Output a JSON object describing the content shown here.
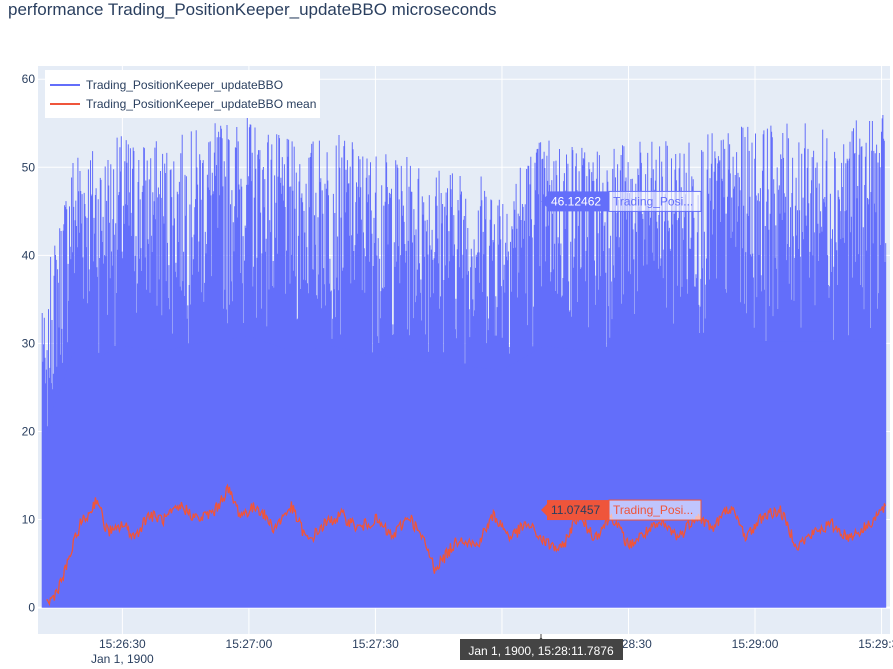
{
  "title": "performance Trading_PositionKeeper_updateBBO microseconds",
  "chart_data": {
    "type": "line",
    "title": "performance Trading_PositionKeeper_updateBBO microseconds",
    "xlabel": "",
    "ylabel": "",
    "ylim": [
      -3,
      61.5
    ],
    "xlim": [
      "15:26:10",
      "15:29:32"
    ],
    "x_date_label": "Jan 1, 1900",
    "grid": true,
    "legend_position": "top-left",
    "y_ticks": [
      "0",
      "10",
      "20",
      "30",
      "40",
      "50",
      "60"
    ],
    "x_ticks": [
      "15:26:30",
      "15:27:00",
      "15:27:30",
      "15:28:00",
      "15:28:30",
      "15:29:00",
      "15:29:30"
    ],
    "series": [
      {
        "name": "Trading_PositionKeeper_updateBBO",
        "color": "#636efa",
        "x": [
          "15:26:11",
          "15:26:12",
          "15:26:13",
          "15:26:15",
          "15:26:18",
          "15:26:20",
          "15:26:25",
          "15:26:30",
          "15:26:40",
          "15:26:50",
          "15:27:00",
          "15:27:10",
          "15:27:20",
          "15:27:30",
          "15:27:40",
          "15:27:50",
          "15:28:00",
          "15:28:10",
          "15:28:20",
          "15:28:30",
          "15:28:40",
          "15:28:50",
          "15:29:00",
          "15:29:10",
          "15:29:20",
          "15:29:31"
        ],
        "min": [
          0,
          0,
          0,
          0,
          0,
          0,
          0,
          0,
          0,
          0,
          0,
          0,
          0,
          0,
          0,
          0,
          0,
          0,
          0,
          0,
          0,
          0,
          0,
          0,
          0,
          0
        ],
        "max": [
          38,
          28,
          40,
          44,
          52,
          54,
          52,
          54,
          53,
          55,
          56,
          53,
          54,
          52,
          51,
          50,
          49,
          54,
          53,
          53,
          53,
          54,
          55,
          55,
          55,
          56
        ]
      },
      {
        "name": "Trading_PositionKeeper_updateBBO mean",
        "color": "#ef553b",
        "x": [
          "15:26:12",
          "15:26:13",
          "15:26:14",
          "15:26:16",
          "15:26:18",
          "15:26:20",
          "15:26:22",
          "15:26:24",
          "15:26:26",
          "15:26:28",
          "15:26:30",
          "15:26:33",
          "15:26:36",
          "15:26:40",
          "15:26:44",
          "15:26:48",
          "15:26:52",
          "15:26:55",
          "15:26:58",
          "15:27:02",
          "15:27:06",
          "15:27:10",
          "15:27:14",
          "15:27:18",
          "15:27:22",
          "15:27:26",
          "15:27:30",
          "15:27:34",
          "15:27:38",
          "15:27:42",
          "15:27:44",
          "15:27:46",
          "15:27:50",
          "15:27:54",
          "15:27:58",
          "15:28:02",
          "15:28:06",
          "15:28:10",
          "15:28:14",
          "15:28:18",
          "15:28:22",
          "15:28:26",
          "15:28:30",
          "15:28:34",
          "15:28:38",
          "15:28:42",
          "15:28:46",
          "15:28:50",
          "15:28:54",
          "15:28:58",
          "15:29:02",
          "15:29:06",
          "15:29:10",
          "15:29:14",
          "15:29:18",
          "15:29:22",
          "15:29:26",
          "15:29:31"
        ],
        "y": [
          0.5,
          0.8,
          1.5,
          3.5,
          6.5,
          9.5,
          10.5,
          12.5,
          9,
          8.5,
          9.5,
          8,
          10.5,
          10,
          11.5,
          10,
          11,
          13.5,
          10.5,
          11.5,
          9,
          11.5,
          7.5,
          9.5,
          10.5,
          9,
          10,
          8,
          10.5,
          7,
          4.5,
          5.5,
          8,
          7,
          10.5,
          8,
          9.5,
          7.5,
          6.5,
          10.5,
          8,
          10.5,
          7,
          8.5,
          9.5,
          8,
          10.5,
          9,
          11.5,
          8,
          10.5,
          11,
          7,
          8.5,
          9.5,
          8,
          9,
          11.5
        ]
      }
    ],
    "hover": {
      "x_label": "Jan 1, 1900, 15:28:11.7876",
      "points": [
        {
          "value": "46.12462",
          "series_label": "Trading_Posi...",
          "y": 46.12462
        },
        {
          "value": "11.07457",
          "series_label": "Trading_Posi...",
          "y": 11.07457
        }
      ]
    }
  }
}
